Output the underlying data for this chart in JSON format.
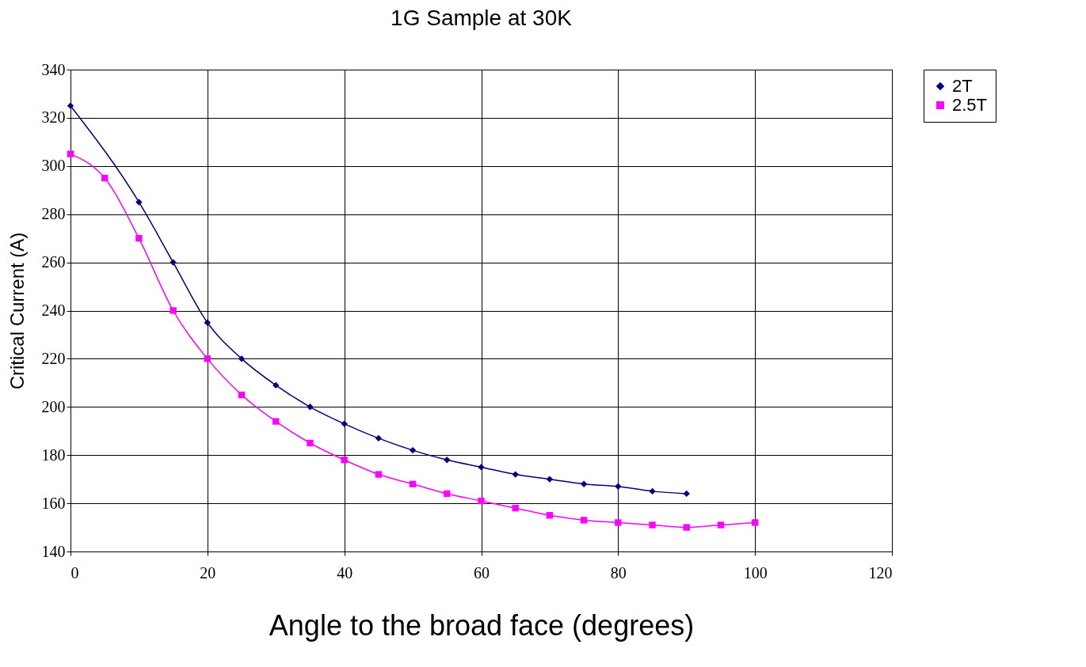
{
  "chart_data": {
    "type": "line",
    "title": "1G Sample at 30K",
    "xlabel": "Angle to the broad face (degrees)",
    "ylabel": "Critical Current (A)",
    "xlim": [
      0,
      120
    ],
    "xticks": [
      0,
      20,
      40,
      60,
      80,
      100,
      120
    ],
    "ylim": [
      140,
      340
    ],
    "yticks": [
      140,
      160,
      180,
      200,
      220,
      240,
      260,
      280,
      300,
      320,
      340
    ],
    "grid": true,
    "legend": "right",
    "series": [
      {
        "name": "2T",
        "color": "#000080",
        "marker": "diamond",
        "x": [
          0,
          10,
          15,
          20,
          25,
          30,
          35,
          40,
          45,
          50,
          55,
          60,
          65,
          70,
          75,
          80,
          85,
          90
        ],
        "values": [
          325,
          285,
          260,
          235,
          220,
          209,
          200,
          193,
          187,
          182,
          178,
          175,
          172,
          170,
          168,
          167,
          165,
          164
        ]
      },
      {
        "name": "2.5T",
        "color": "#ff00ff",
        "marker": "square",
        "x": [
          0,
          5,
          10,
          15,
          20,
          25,
          30,
          35,
          40,
          45,
          50,
          55,
          60,
          65,
          70,
          75,
          80,
          85,
          90,
          95,
          100
        ],
        "values": [
          305,
          295,
          270,
          240,
          220,
          205,
          194,
          185,
          178,
          172,
          168,
          164,
          161,
          158,
          155,
          153,
          152,
          151,
          150,
          151,
          152
        ]
      }
    ]
  }
}
